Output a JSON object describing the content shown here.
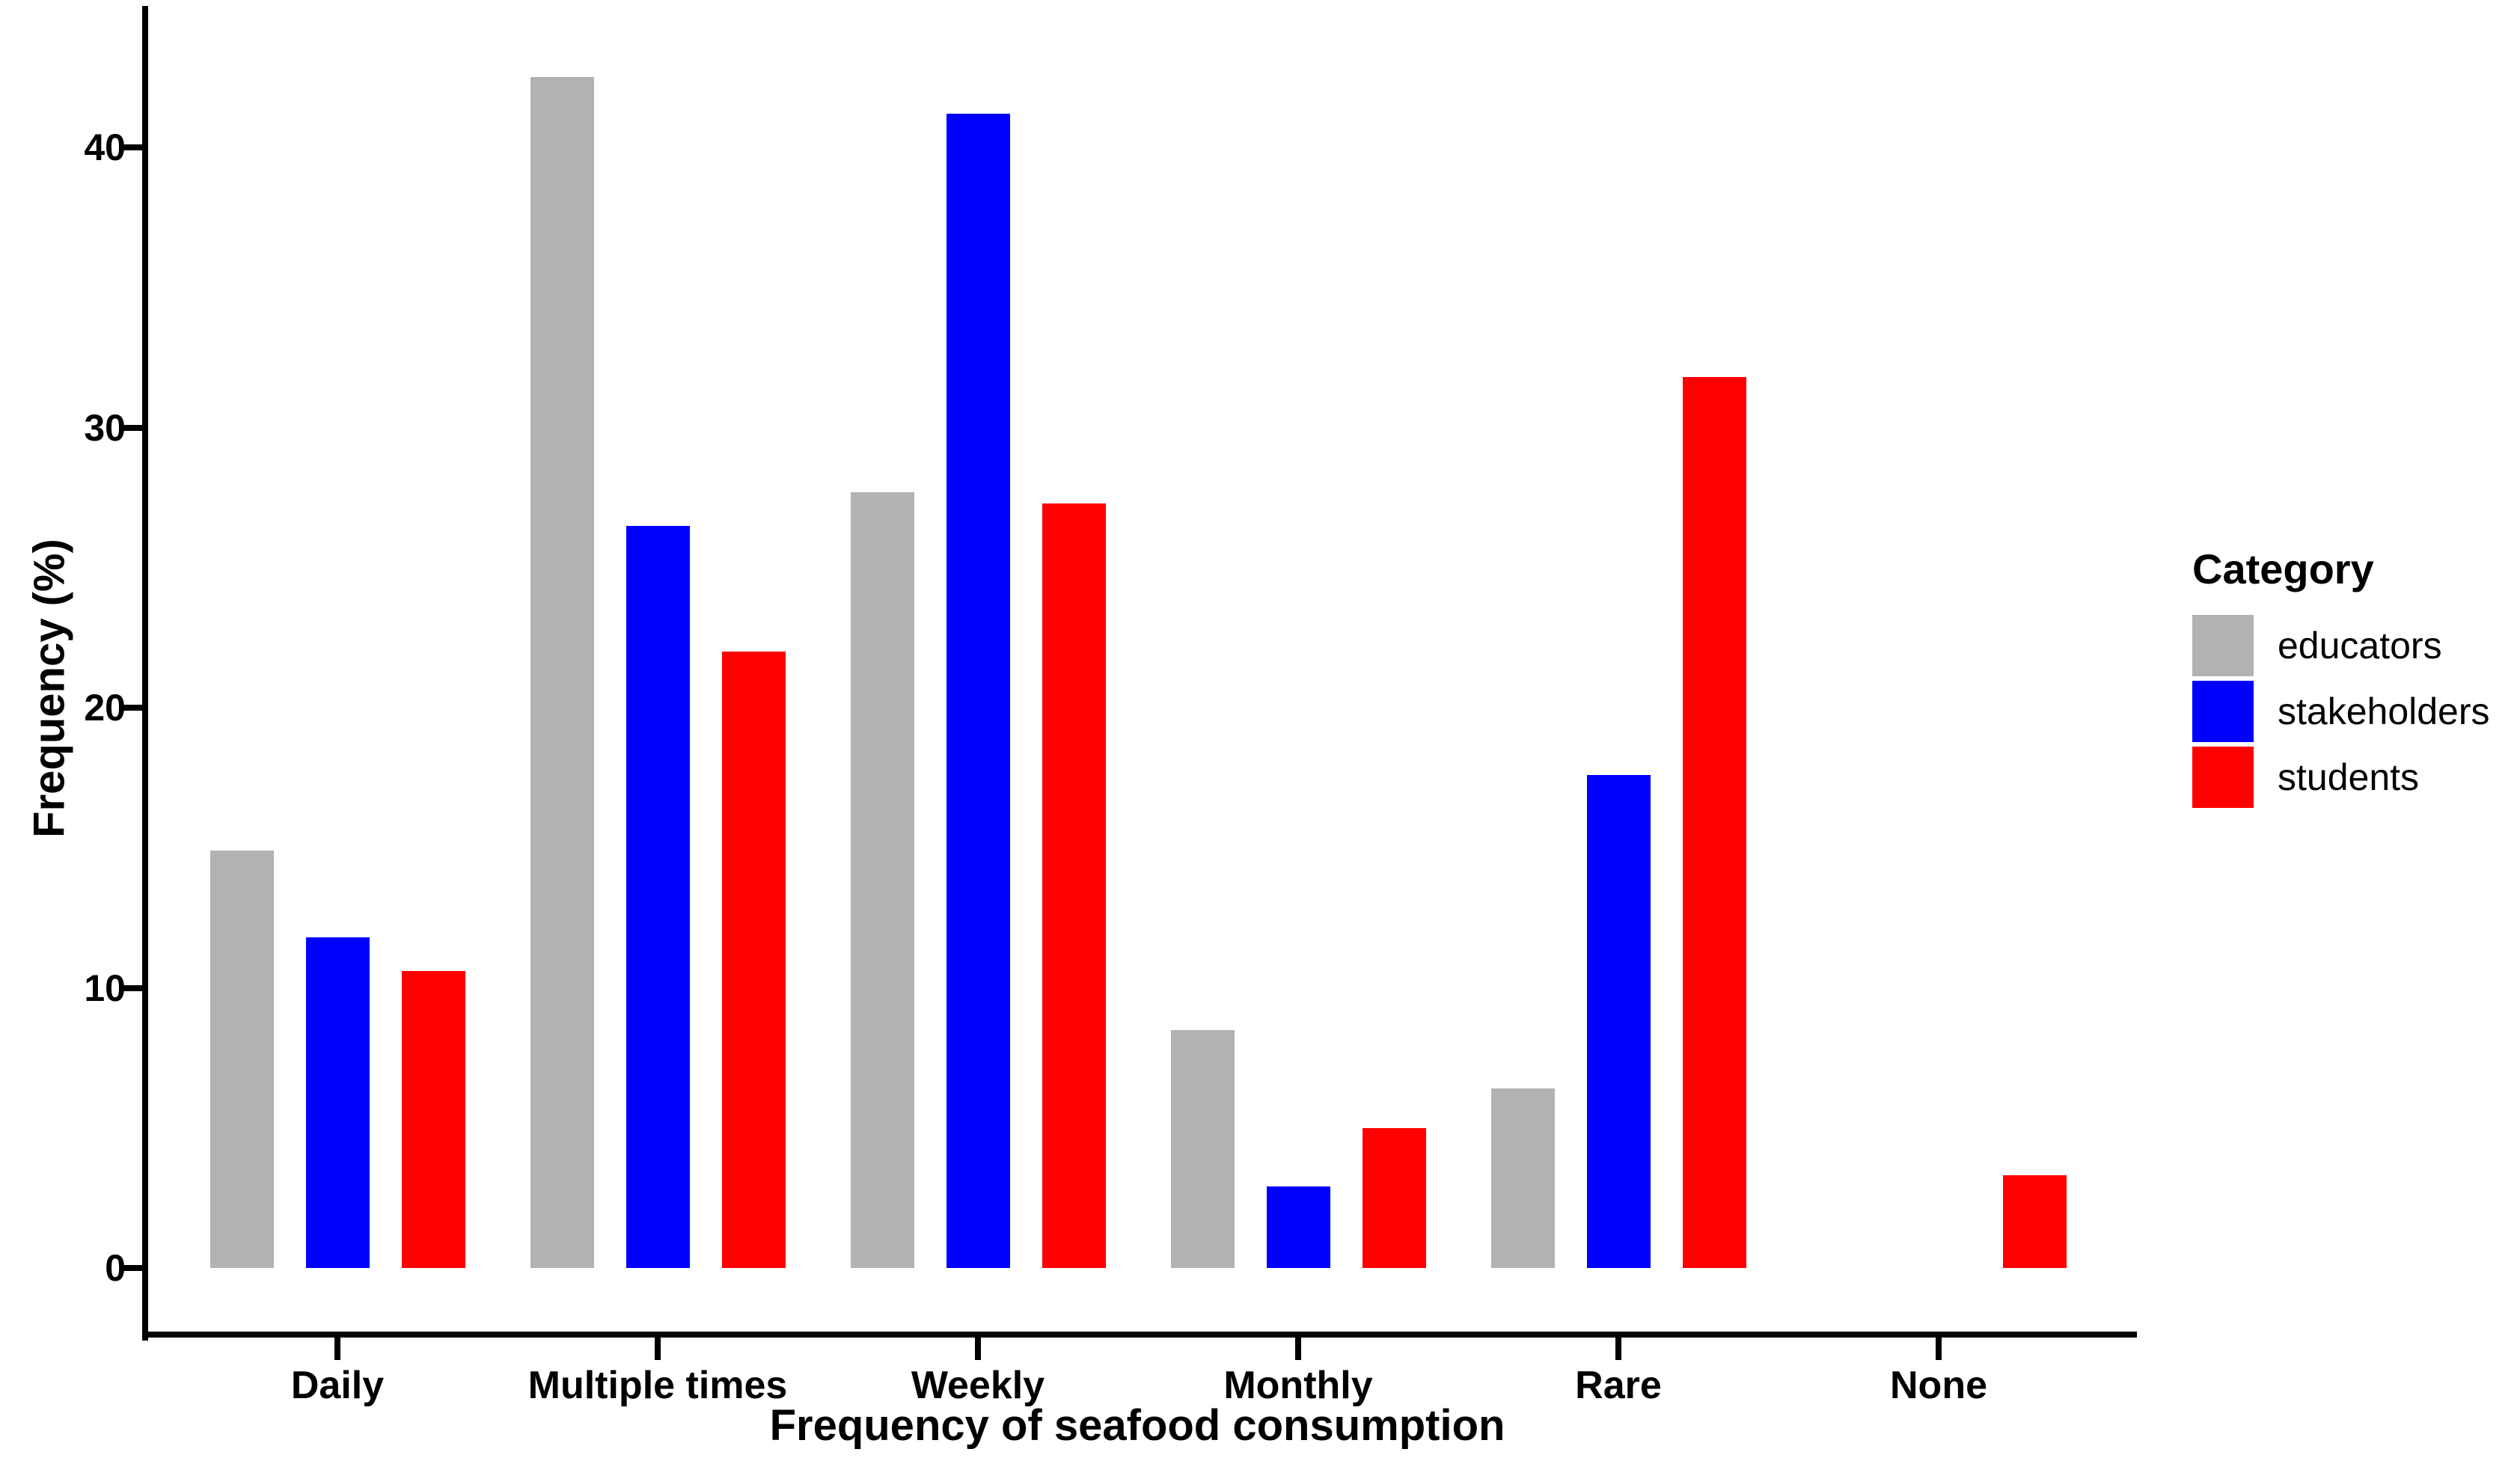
{
  "chart_data": {
    "type": "bar",
    "title": "",
    "xlabel": "Frequency of seafood consumption",
    "ylabel": "Frequency (%)",
    "categories": [
      "Daily",
      "Multiple times",
      "Weekly",
      "Monthly",
      "Rare",
      "None"
    ],
    "series": [
      {
        "name": "educators",
        "color": "#b2b2b2",
        "values": [
          14.9,
          42.5,
          27.7,
          8.5,
          6.4,
          0
        ]
      },
      {
        "name": "stakeholders",
        "color": "#0000ff",
        "values": [
          11.8,
          26.5,
          41.2,
          2.9,
          17.6,
          0
        ]
      },
      {
        "name": "students",
        "color": "#ff0000",
        "values": [
          10.6,
          22.0,
          27.3,
          5.0,
          31.8,
          3.3
        ]
      }
    ],
    "ylim": [
      0,
      43.2
    ],
    "yticks": [
      0,
      10,
      20,
      30,
      40
    ],
    "legend": {
      "title": "Category",
      "items": [
        "educators",
        "stakeholders",
        "students"
      ],
      "position": "right"
    },
    "grid": false,
    "axis_color": "#000000",
    "background": "#ffffff"
  }
}
